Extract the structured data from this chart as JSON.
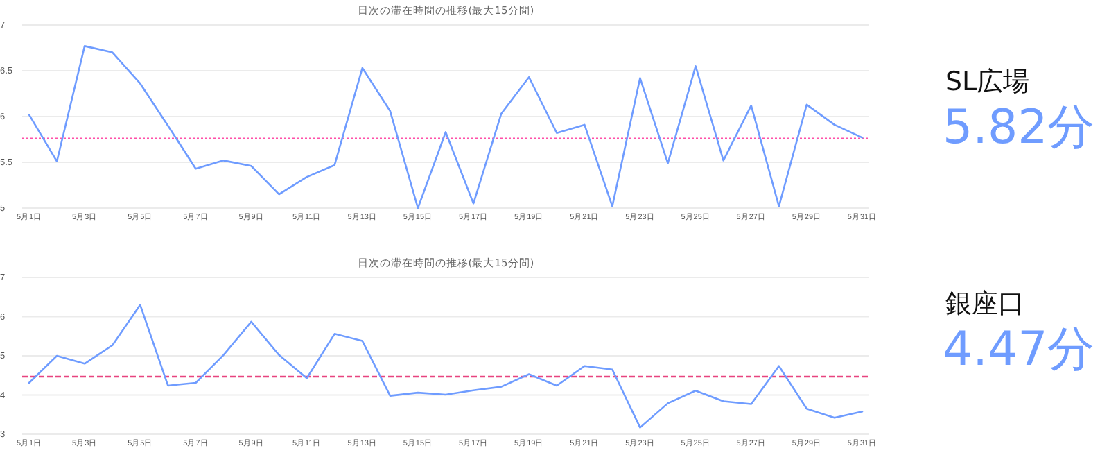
{
  "chart_data": [
    {
      "type": "line",
      "title": "日次の滞在時間の推移(最大15分間)",
      "categories": [
        "5月1日",
        null,
        "5月3日",
        null,
        "5月5日",
        null,
        "5月7日",
        null,
        "5月9日",
        null,
        "5月11日",
        null,
        "5月13日",
        null,
        "5月15日",
        null,
        "5月17日",
        null,
        "5月19日",
        null,
        "5月21日",
        null,
        "5月23日",
        null,
        "5月25日",
        null,
        "5月27日",
        null,
        "5月29日",
        null,
        "5月31日"
      ],
      "series": [
        {
          "color": "#6f9cff",
          "values": [
            6.02,
            5.51,
            6.77,
            6.7,
            6.36,
            5.9,
            5.43,
            5.52,
            5.46,
            5.15,
            5.34,
            5.47,
            6.53,
            6.06,
            5.0,
            5.83,
            5.05,
            6.03,
            6.43,
            5.82,
            5.91,
            5.02,
            6.42,
            5.49,
            6.55,
            5.52,
            6.12,
            5.02,
            6.13,
            5.91,
            5.77
          ]
        }
      ],
      "ylim": [
        5,
        7
      ],
      "yticks": [
        5,
        5.5,
        6,
        6.5,
        7
      ],
      "grid": "y",
      "marker": "none",
      "line_style": "solid",
      "ref_lines": [
        {
          "axis": "y",
          "value": 5.76,
          "color": "#ff4fa8",
          "line_style": "dotted"
        }
      ]
    },
    {
      "type": "other",
      "title": "SL広場",
      "annotations": [
        "5.82分"
      ]
    },
    {
      "type": "line",
      "title": "日次の滞在時間の推移(最大15分間)",
      "categories": [
        "5月1日",
        null,
        "5月3日",
        null,
        "5月5日",
        null,
        "5月7日",
        null,
        "5月9日",
        null,
        "5月11日",
        null,
        "5月13日",
        null,
        "5月15日",
        null,
        "5月17日",
        null,
        "5月19日",
        null,
        "5月21日",
        null,
        "5月23日",
        null,
        "5月25日",
        null,
        "5月27日",
        null,
        "5月29日",
        null,
        "5月31日"
      ],
      "series": [
        {
          "color": "#6f9cff",
          "values": [
            4.31,
            5.0,
            4.8,
            5.27,
            6.3,
            4.24,
            4.31,
            5.02,
            5.87,
            5.02,
            4.43,
            5.56,
            5.38,
            3.98,
            4.06,
            4.01,
            4.12,
            4.21,
            4.53,
            4.24,
            4.74,
            4.65,
            3.17,
            3.79,
            4.11,
            3.84,
            3.77,
            4.74,
            3.65,
            3.42,
            3.58
          ]
        }
      ],
      "ylim": [
        3,
        7
      ],
      "yticks": [
        3,
        4,
        5,
        6,
        7
      ],
      "grid": "y",
      "marker": "none",
      "line_style": "solid",
      "ref_lines": [
        {
          "axis": "y",
          "value": 4.47,
          "color": "#e8447f",
          "line_style": "dashed"
        }
      ]
    },
    {
      "type": "other",
      "title": "銀座口",
      "annotations": [
        "4.47分"
      ]
    }
  ]
}
